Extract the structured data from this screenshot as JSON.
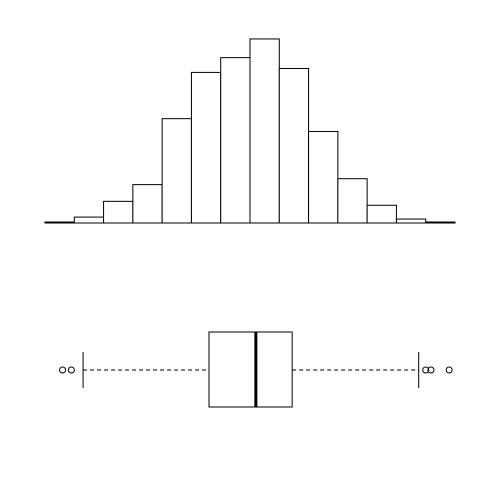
{
  "chart_data": [
    {
      "type": "bar",
      "subtype": "histogram",
      "bins": [
        -3.5,
        -3,
        -2.5,
        -2,
        -1.5,
        -1,
        -0.5,
        0,
        0.5,
        1,
        1.5,
        2,
        2.5,
        3,
        3.5
      ],
      "counts": [
        1,
        6,
        22,
        39,
        106,
        153,
        168,
        187,
        157,
        93,
        45,
        18,
        4,
        1
      ],
      "xlim": [
        -3.5,
        3.5
      ],
      "ylim": [
        0,
        190
      ],
      "title": "",
      "xlabel": "",
      "ylabel": "",
      "axes": false,
      "grid": false,
      "bar_fill": "#ffffff",
      "bar_stroke": "#000000"
    },
    {
      "type": "boxplot",
      "orientation": "horizontal",
      "xlim": [
        -3.5,
        3.5
      ],
      "whisker_low": -2.85,
      "q1": -0.7,
      "median": 0.1,
      "q3": 0.72,
      "whisker_high": 2.88,
      "outliers": [
        -3.2,
        -3.05,
        3.0,
        3.09,
        3.4
      ],
      "whisker_style": "dashed",
      "median_style": "bold",
      "axes": false,
      "grid": false,
      "box_fill": "#ffffff",
      "stroke": "#000000"
    }
  ]
}
